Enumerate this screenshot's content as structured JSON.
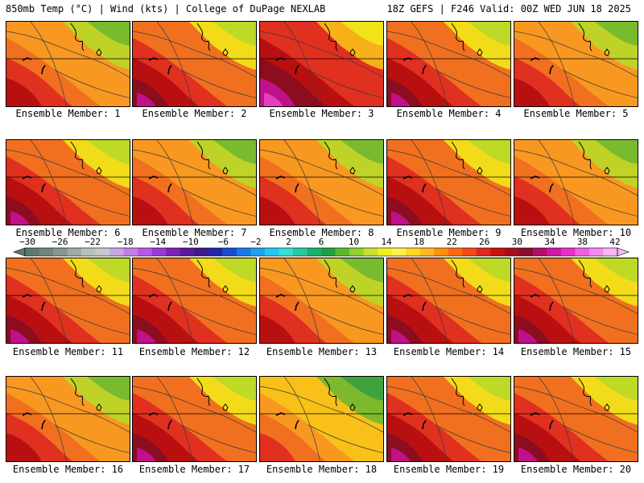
{
  "header": {
    "left": "850mb Temp (°C) | Wind (kts) | College of DuPage NEXLAB",
    "right": "18Z GEFS | F246 Valid: 00Z WED JUN 18 2025"
  },
  "caption_prefix": "Ensemble Member: ",
  "panels": [
    {
      "label": "Ensemble Member: 1",
      "warmth": 0.45
    },
    {
      "label": "Ensemble Member: 2",
      "warmth": 0.7
    },
    {
      "label": "Ensemble Member: 3",
      "warmth": 0.9
    },
    {
      "label": "Ensemble Member: 4",
      "warmth": 0.65
    },
    {
      "label": "Ensemble Member: 5",
      "warmth": 0.55
    },
    {
      "label": "Ensemble Member: 6",
      "warmth": 0.65
    },
    {
      "label": "Ensemble Member: 7",
      "warmth": 0.5
    },
    {
      "label": "Ensemble Member: 8",
      "warmth": 0.55
    },
    {
      "label": "Ensemble Member: 9",
      "warmth": 0.8
    },
    {
      "label": "Ensemble Member: 10",
      "warmth": 0.55
    },
    {
      "label": "Ensemble Member: 11",
      "warmth": 0.7
    },
    {
      "label": "Ensemble Member: 12",
      "warmth": 0.75
    },
    {
      "label": "Ensemble Member: 13",
      "warmth": 0.55
    },
    {
      "label": "Ensemble Member: 14",
      "warmth": 0.85
    },
    {
      "label": "Ensemble Member: 15",
      "warmth": 0.7
    },
    {
      "label": "Ensemble Member: 16",
      "warmth": 0.55
    },
    {
      "label": "Ensemble Member: 17",
      "warmth": 0.7
    },
    {
      "label": "Ensemble Member: 18",
      "warmth": 0.35
    },
    {
      "label": "Ensemble Member: 19",
      "warmth": 0.65
    },
    {
      "label": "Ensemble Member: 20",
      "warmth": 0.75
    }
  ],
  "colorbar": {
    "ticks": [
      "-30",
      "-26",
      "-22",
      "-18",
      "-14",
      "-10",
      "-6",
      "-2",
      "2",
      "6",
      "10",
      "14",
      "18",
      "22",
      "26",
      "30",
      "34",
      "38",
      "42"
    ],
    "colors": [
      "#5c7a72",
      "#70857f",
      "#889590",
      "#a0aaa8",
      "#b9bfc0",
      "#c9c7d2",
      "#c8a6e3",
      "#c27fe9",
      "#b55ae8",
      "#9a3ad6",
      "#7a23b8",
      "#5b1a9e",
      "#3a1a8c",
      "#2226a6",
      "#1c4cd0",
      "#1c78e6",
      "#20a0f0",
      "#20c8f0",
      "#38dcd8",
      "#28c8a0",
      "#18b070",
      "#20a040",
      "#5cb830",
      "#90d030",
      "#c8e030",
      "#f0f020",
      "#fff050",
      "#ffd820",
      "#ffb820",
      "#ff9010",
      "#ff6a10",
      "#f84818",
      "#e02820",
      "#c81010",
      "#a81018",
      "#8c0c30",
      "#b0106a",
      "#d018a0",
      "#e830c8",
      "#f060e0",
      "#f48af0",
      "#f8b6f6"
    ],
    "tick_color": "#000000"
  },
  "palette": {
    "cold_green": "#3aa040",
    "green": "#70b830",
    "yellow_green": "#b8d828",
    "yellow": "#f2e818",
    "orange_light": "#f8c018",
    "orange": "#f89820",
    "orange_dark": "#f07020",
    "red": "#e03020",
    "dark_red": "#b81010",
    "maroon": "#8c0c20",
    "magenta": "#c0108a",
    "pink": "#e040c0"
  }
}
